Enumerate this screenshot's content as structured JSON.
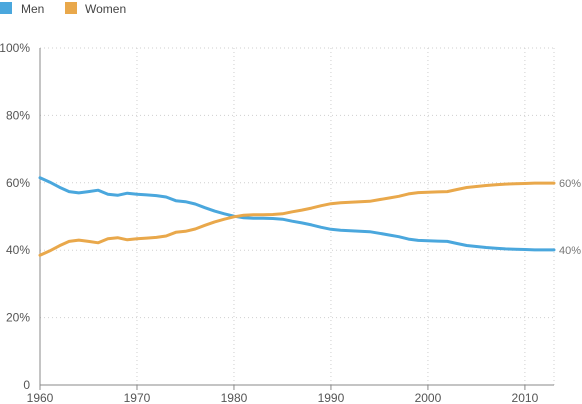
{
  "chart_data": {
    "type": "line",
    "title": "",
    "xlabel": "",
    "ylabel": "",
    "xlim": [
      1960,
      2013
    ],
    "ylim": [
      0,
      100
    ],
    "x_ticks": [
      1960,
      1970,
      1980,
      1990,
      2000,
      2010
    ],
    "x_tick_labels": [
      "1960",
      "1970",
      "1980",
      "1990",
      "2000",
      "2010"
    ],
    "y_ticks": [
      0,
      20,
      40,
      60,
      80,
      100
    ],
    "y_tick_labels": [
      "0",
      "20%",
      "40%",
      "60%",
      "80%",
      "100%"
    ],
    "grid": true,
    "legend_position": "top-left",
    "series": [
      {
        "name": "Men",
        "color": "#4aa7dd",
        "end_label": "40%",
        "x": [
          1960,
          1961,
          1962,
          1963,
          1964,
          1965,
          1966,
          1967,
          1968,
          1969,
          1970,
          1971,
          1972,
          1973,
          1974,
          1975,
          1976,
          1977,
          1978,
          1979,
          1980,
          1981,
          1982,
          1983,
          1984,
          1985,
          1986,
          1987,
          1988,
          1989,
          1990,
          1991,
          1992,
          1993,
          1994,
          1995,
          1996,
          1997,
          1998,
          1999,
          2000,
          2001,
          2002,
          2003,
          2004,
          2005,
          2006,
          2007,
          2008,
          2009,
          2010,
          2011,
          2012,
          2013
        ],
        "values": [
          61.5,
          60.2,
          58.7,
          57.4,
          57,
          57.4,
          57.8,
          56.6,
          56.3,
          56.9,
          56.6,
          56.4,
          56.2,
          55.8,
          54.7,
          54.4,
          53.7,
          52.6,
          51.6,
          50.8,
          50.1,
          49.6,
          49.5,
          49.5,
          49.4,
          49.2,
          48.6,
          48.1,
          47.5,
          46.8,
          46.2,
          45.9,
          45.8,
          45.6,
          45.5,
          45,
          44.5,
          44,
          43.3,
          42.9,
          42.8,
          42.7,
          42.6,
          42,
          41.4,
          41.1,
          40.8,
          40.6,
          40.4,
          40.3,
          40.2,
          40.1,
          40.1,
          40.1
        ]
      },
      {
        "name": "Women",
        "color": "#e9a84b",
        "end_label": "60%",
        "x": [
          1960,
          1961,
          1962,
          1963,
          1964,
          1965,
          1966,
          1967,
          1968,
          1969,
          1970,
          1971,
          1972,
          1973,
          1974,
          1975,
          1976,
          1977,
          1978,
          1979,
          1980,
          1981,
          1982,
          1983,
          1984,
          1985,
          1986,
          1987,
          1988,
          1989,
          1990,
          1991,
          1992,
          1993,
          1994,
          1995,
          1996,
          1997,
          1998,
          1999,
          2000,
          2001,
          2002,
          2003,
          2004,
          2005,
          2006,
          2007,
          2008,
          2009,
          2010,
          2011,
          2012,
          2013
        ],
        "values": [
          38.5,
          39.8,
          41.3,
          42.6,
          43,
          42.6,
          42.2,
          43.4,
          43.7,
          43.1,
          43.4,
          43.6,
          43.8,
          44.2,
          45.3,
          45.6,
          46.3,
          47.4,
          48.4,
          49.2,
          49.9,
          50.4,
          50.5,
          50.5,
          50.6,
          50.8,
          51.4,
          51.9,
          52.5,
          53.2,
          53.8,
          54.1,
          54.2,
          54.4,
          54.5,
          55,
          55.5,
          56,
          56.7,
          57.1,
          57.2,
          57.3,
          57.4,
          58,
          58.6,
          58.9,
          59.2,
          59.4,
          59.6,
          59.7,
          59.8,
          59.9,
          59.9,
          59.9
        ]
      }
    ]
  }
}
